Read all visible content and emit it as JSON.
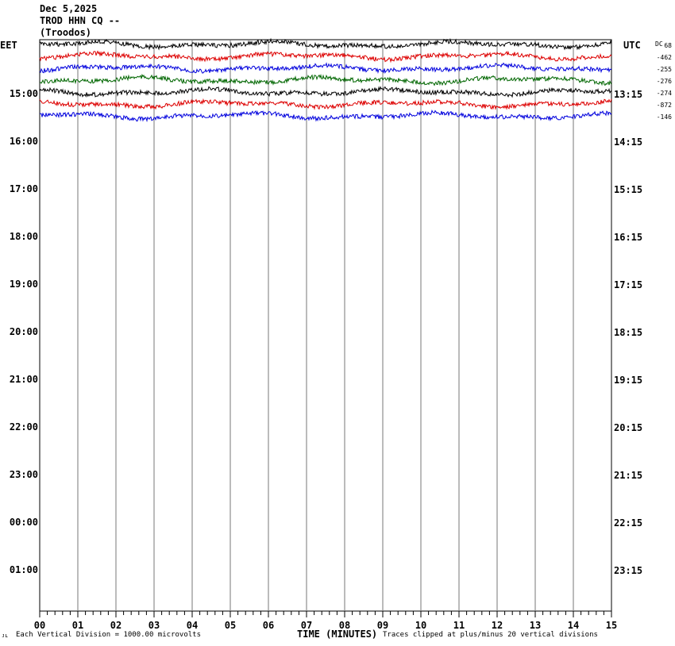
{
  "header": {
    "date": "Dec 5,2025",
    "station": "TROD HHN CQ --",
    "location": "(Troodos)"
  },
  "labels": {
    "left_tz": "EET",
    "right_tz": "UTC",
    "dc_label": "DC",
    "xlabel": "TIME (MINUTES)",
    "scale_note": "Each Vertical Division = 1000.00 microvolts",
    "clip_note": "Traces clipped at plus/minus 20 vertical divisions",
    "corner_mark": "ᴊʟ"
  },
  "chart_data": {
    "type": "line",
    "x_range_minutes": [
      0,
      15
    ],
    "x_ticks": [
      "00",
      "01",
      "02",
      "03",
      "04",
      "05",
      "06",
      "07",
      "08",
      "09",
      "10",
      "11",
      "12",
      "13",
      "14",
      "15"
    ],
    "rows_left": [
      "15:00",
      "16:00",
      "17:00",
      "18:00",
      "19:00",
      "20:00",
      "21:00",
      "22:00",
      "23:00",
      "00:00",
      "01:00"
    ],
    "rows_right": [
      "13:15",
      "14:15",
      "15:15",
      "16:15",
      "17:15",
      "18:15",
      "19:15",
      "20:15",
      "21:15",
      "22:15",
      "23:15"
    ],
    "dc_offsets": [
      "68",
      "-462",
      "-255",
      "-276",
      "-274",
      "-872",
      "-146"
    ],
    "trace_colors": [
      "#000000",
      "#dd0000",
      "#0000dd",
      "#006600",
      "#000000",
      "#dd0000",
      "#0000dd"
    ],
    "grid": true
  }
}
